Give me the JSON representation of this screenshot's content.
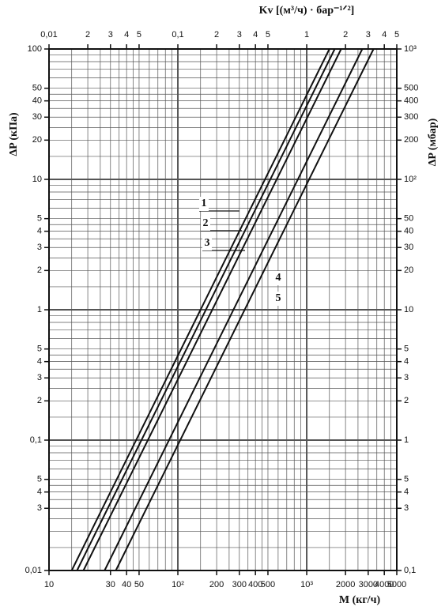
{
  "chart_data": {
    "type": "line",
    "x_label": "M  (кг/ч)",
    "x2_label": "Kv [(м³/ч) · бар⁻¹ᐟ²]",
    "y_label": "ΔP  (кПа)",
    "y2_label": "ΔP  (мбар)",
    "log_x": true,
    "log_y": true,
    "grid": true,
    "color": "#111111",
    "xlim": [
      10,
      5000
    ],
    "xticks": [
      10,
      30,
      40,
      50,
      {
        "value": 100,
        "label": "10²"
      },
      200,
      300,
      400,
      500,
      {
        "value": 1000,
        "label": "10³"
      },
      2000,
      3000,
      4000,
      5000
    ],
    "x2lim": [
      0.01,
      5
    ],
    "x2ticks": [
      {
        "value": 0.01,
        "label": "0,01"
      },
      {
        "value": 0.02,
        "label": "2"
      },
      {
        "value": 0.03,
        "label": "3"
      },
      {
        "value": 0.04,
        "label": "4"
      },
      {
        "value": 0.05,
        "label": "5"
      },
      {
        "value": 0.1,
        "label": "0,1"
      },
      {
        "value": 0.2,
        "label": "2"
      },
      {
        "value": 0.3,
        "label": "3"
      },
      {
        "value": 0.4,
        "label": "4"
      },
      {
        "value": 0.5,
        "label": "5"
      },
      1,
      2,
      3,
      4,
      5
    ],
    "ylim": [
      0.01,
      100
    ],
    "yticks": [
      {
        "value": 0.01,
        "label": "0,01"
      },
      {
        "value": 0.03,
        "label": "3"
      },
      {
        "value": 0.04,
        "label": "4"
      },
      {
        "value": 0.05,
        "label": "5"
      },
      {
        "value": 0.1,
        "label": "0,1"
      },
      {
        "value": 0.2,
        "label": "2"
      },
      {
        "value": 0.3,
        "label": "3"
      },
      {
        "value": 0.4,
        "label": "4"
      },
      {
        "value": 0.5,
        "label": "5"
      },
      1,
      2,
      3,
      4,
      5,
      10,
      20,
      30,
      40,
      50,
      100
    ],
    "y2lim": [
      0.1,
      1000
    ],
    "y2ticks": [
      {
        "value": 0.1,
        "label": "0,1"
      },
      {
        "value": 0.3,
        "label": "3"
      },
      {
        "value": 0.4,
        "label": "4"
      },
      {
        "value": 0.5,
        "label": "5"
      },
      1,
      2,
      3,
      4,
      5,
      10,
      20,
      30,
      40,
      50,
      {
        "value": 100,
        "label": "10²"
      },
      200,
      300,
      400,
      500,
      {
        "value": 1000,
        "label": "10³"
      }
    ],
    "series": [
      {
        "name": "1",
        "x": [
          15,
          1500
        ],
        "values": [
          0.01,
          100
        ]
      },
      {
        "name": "2",
        "x": [
          16.5,
          1650
        ],
        "values": [
          0.01,
          100
        ]
      },
      {
        "name": "3",
        "x": [
          18.5,
          1850
        ],
        "values": [
          0.01,
          100
        ]
      },
      {
        "name": "4",
        "x": [
          27,
          2700
        ],
        "values": [
          0.01,
          100
        ]
      },
      {
        "name": "5",
        "x": [
          33,
          3300
        ],
        "values": [
          0.01,
          100
        ]
      }
    ]
  }
}
